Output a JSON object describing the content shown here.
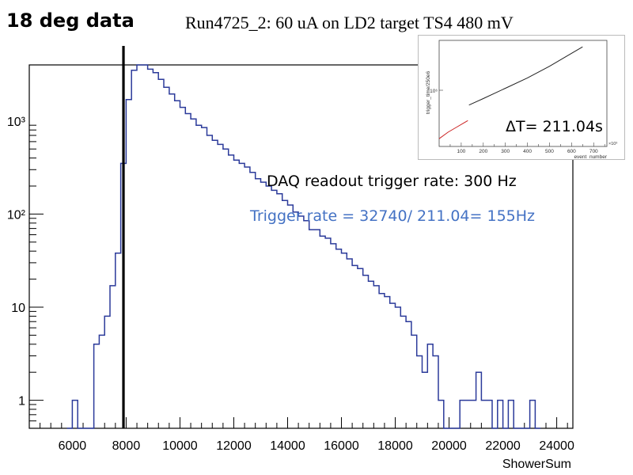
{
  "slide": {
    "title": "18 deg data",
    "run_title": "Run4725_2: 60 uA on LD2 target TS4 480 mV"
  },
  "annotations": {
    "daq": "DAQ readout  trigger rate: 300 Hz",
    "rate": "Trigger rate = 32740/ 211.04= 155Hz",
    "delta_t": "ΔT= 211.04s",
    "rate_color": "#4472c4"
  },
  "chart_data": [
    {
      "type": "histogram",
      "xlabel": "ShowerSum",
      "ylabel": "",
      "yscale": "log",
      "xlim": [
        4400,
        24600
      ],
      "ylim": [
        0.5,
        4000
      ],
      "xticks": [
        6000,
        8000,
        10000,
        12000,
        14000,
        16000,
        18000,
        20000,
        22000,
        24000
      ],
      "yticks": [
        {
          "value": 1,
          "label": "1"
        },
        {
          "value": 10,
          "label": "10"
        },
        {
          "value": 100,
          "label": "10²"
        },
        {
          "value": 1000,
          "label": "10³"
        }
      ],
      "line_color": "#2b3a9a",
      "cut_line_x": 7900,
      "bin_width": 200,
      "bins_start": 5800,
      "counts": [
        0,
        1,
        0,
        0,
        0,
        4,
        5,
        8,
        17,
        38,
        350,
        1700,
        3500,
        4000,
        4000,
        3600,
        3300,
        2800,
        2300,
        1950,
        1650,
        1400,
        1200,
        1050,
        900,
        850,
        700,
        620,
        560,
        500,
        430,
        380,
        350,
        320,
        280,
        240,
        220,
        200,
        180,
        165,
        140,
        125,
        105,
        95,
        85,
        68,
        68,
        58,
        55,
        48,
        42,
        38,
        33,
        28,
        26,
        22,
        19,
        17,
        14,
        13,
        11,
        10,
        8,
        7,
        5,
        3,
        2,
        4,
        3,
        1,
        0,
        0,
        0,
        1,
        1,
        1,
        2,
        1,
        1,
        0,
        1,
        0,
        1,
        0,
        0,
        0,
        1,
        0
      ]
    },
    {
      "type": "line",
      "xlabel": "event_number",
      "ylabel": "trigger_time/250e6",
      "x_exponent_label": "×10³",
      "y_exponent_label": "10⁶",
      "xticks": [
        100,
        200,
        300,
        400,
        500,
        600,
        700
      ],
      "series": [
        {
          "color": "#cc2222",
          "x": [
            0,
            40,
            80,
            110,
            130
          ],
          "y": [
            1.0,
            1.25,
            1.45,
            1.6,
            1.7
          ]
        },
        {
          "color": "#222222",
          "x": [
            135,
            200,
            300,
            400,
            500,
            600,
            650
          ],
          "y": [
            2.3,
            2.55,
            2.95,
            3.35,
            3.8,
            4.3,
            4.55
          ]
        }
      ]
    }
  ]
}
